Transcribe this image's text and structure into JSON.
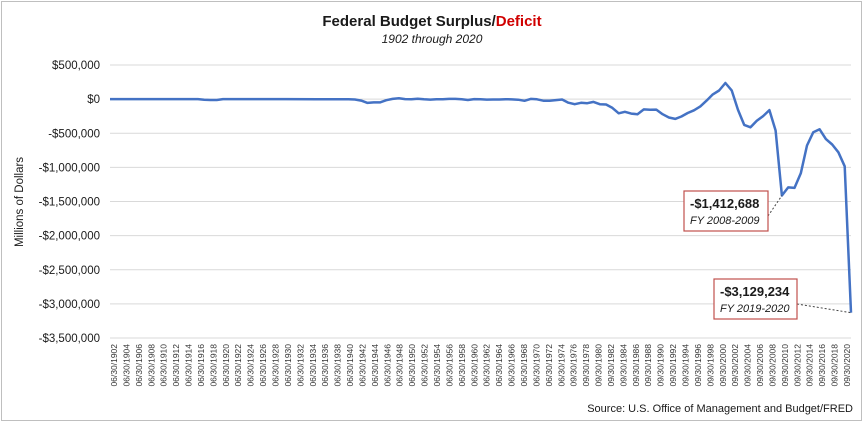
{
  "chart_data": {
    "type": "line",
    "title": "Federal Budget Surplus/",
    "title_highlight": "Deficit",
    "subtitle": "1902 through 2020",
    "ylabel": "Millions of Dollars",
    "ylim": [
      -3500000,
      500000
    ],
    "yticks": [
      500000,
      0,
      -500000,
      -1000000,
      -1500000,
      -2000000,
      -2500000,
      -3000000,
      -3500000
    ],
    "ytick_labels": [
      "$500,000",
      "$0",
      "-$500,000",
      "-$1,000,000",
      "-$1,500,000",
      "-$2,000,000",
      "-$2,500,000",
      "-$3,000,000",
      "-$3,500,000"
    ],
    "grid": true,
    "colors": {
      "series": "#4472c4",
      "highlight": "#d00000",
      "annotation_border": "#c0504d"
    },
    "x_tick_labels": [
      "06/30/1902",
      "06/30/1904",
      "06/30/1906",
      "06/30/1908",
      "06/30/1910",
      "06/30/1912",
      "06/30/1914",
      "06/30/1916",
      "06/30/1918",
      "06/30/1920",
      "06/30/1922",
      "06/30/1924",
      "06/30/1926",
      "06/30/1928",
      "06/30/1930",
      "06/30/1932",
      "06/30/1934",
      "06/30/1936",
      "06/30/1938",
      "06/30/1940",
      "06/30/1942",
      "06/30/1944",
      "06/30/1946",
      "06/30/1948",
      "06/30/1950",
      "06/30/1952",
      "06/30/1954",
      "06/30/1956",
      "06/30/1958",
      "06/30/1960",
      "06/30/1962",
      "06/30/1964",
      "06/30/1966",
      "06/30/1968",
      "06/30/1970",
      "06/30/1972",
      "06/30/1974",
      "09/30/1976",
      "09/30/1978",
      "09/30/1980",
      "09/30/1982",
      "09/30/1984",
      "09/30/1986",
      "09/30/1988",
      "09/30/1990",
      "09/30/1992",
      "09/30/1994",
      "09/30/1996",
      "09/30/1998",
      "09/30/2000",
      "09/30/2002",
      "09/30/2004",
      "09/30/2006",
      "09/30/2008",
      "09/30/2010",
      "09/30/2012",
      "09/30/2014",
      "09/30/2016",
      "09/30/2018",
      "09/30/2020"
    ],
    "series": [
      {
        "x": [
          1902,
          1910,
          1916,
          1917,
          1918,
          1919,
          1920,
          1930,
          1935,
          1940,
          1941,
          1942,
          1943,
          1944,
          1945,
          1946,
          1947,
          1948,
          1949,
          1950,
          1951,
          1952,
          1953,
          1954,
          1955,
          1956,
          1957,
          1958,
          1959,
          1960,
          1961,
          1962,
          1963,
          1964,
          1965,
          1966,
          1967,
          1968,
          1969,
          1970,
          1971,
          1972,
          1973,
          1974,
          1975,
          1976,
          1977,
          1978,
          1979,
          1980,
          1981,
          1982,
          1983,
          1984,
          1985,
          1986,
          1987,
          1988,
          1989,
          1990,
          1991,
          1992,
          1993,
          1994,
          1995,
          1996,
          1997,
          1998,
          1999,
          2000,
          2001,
          2002,
          2003,
          2004,
          2005,
          2006,
          2007,
          2008,
          2009,
          2010,
          2011,
          2012,
          2013,
          2014,
          2015,
          2016,
          2017,
          2018,
          2019,
          2020
        ],
        "y": [
          0,
          0,
          0,
          -9000,
          -13000,
          -13000,
          0,
          0,
          -3000,
          -3000,
          -5000,
          -21000,
          -55000,
          -48000,
          -48000,
          -16000,
          4000,
          12000,
          1000,
          -3000,
          6000,
          -2000,
          -7000,
          -1000,
          -3000,
          4000,
          3000,
          -3000,
          -13000,
          0,
          -3000,
          -7000,
          -5000,
          -6000,
          -1000,
          -4000,
          -9000,
          -25000,
          3000,
          -3000,
          -23000,
          -23000,
          -15000,
          -6000,
          -53000,
          -74000,
          -54000,
          -59000,
          -41000,
          -74000,
          -79000,
          -128000,
          -208000,
          -185000,
          -212000,
          -221000,
          -150000,
          -155000,
          -153000,
          -221000,
          -269000,
          -290000,
          -255000,
          -203000,
          -164000,
          -107000,
          -22000,
          69000,
          126000,
          236000,
          128000,
          -158000,
          -378000,
          -413000,
          -318000,
          -248000,
          -161000,
          -459000,
          -1412688,
          -1294000,
          -1300000,
          -1087000,
          -680000,
          -485000,
          -442000,
          -585000,
          -665000,
          -779000,
          -984000,
          -3129234
        ]
      }
    ],
    "annotations": [
      {
        "value_label": "-$1,412,688",
        "period_label": "FY 2008-2009",
        "x": 2009,
        "y": -1412688
      },
      {
        "value_label": "-$3,129,234",
        "period_label": "FY 2019-2020",
        "x": 2020,
        "y": -3129234
      }
    ],
    "source": "Source: U.S. Office of Management and Budget/FRED"
  }
}
